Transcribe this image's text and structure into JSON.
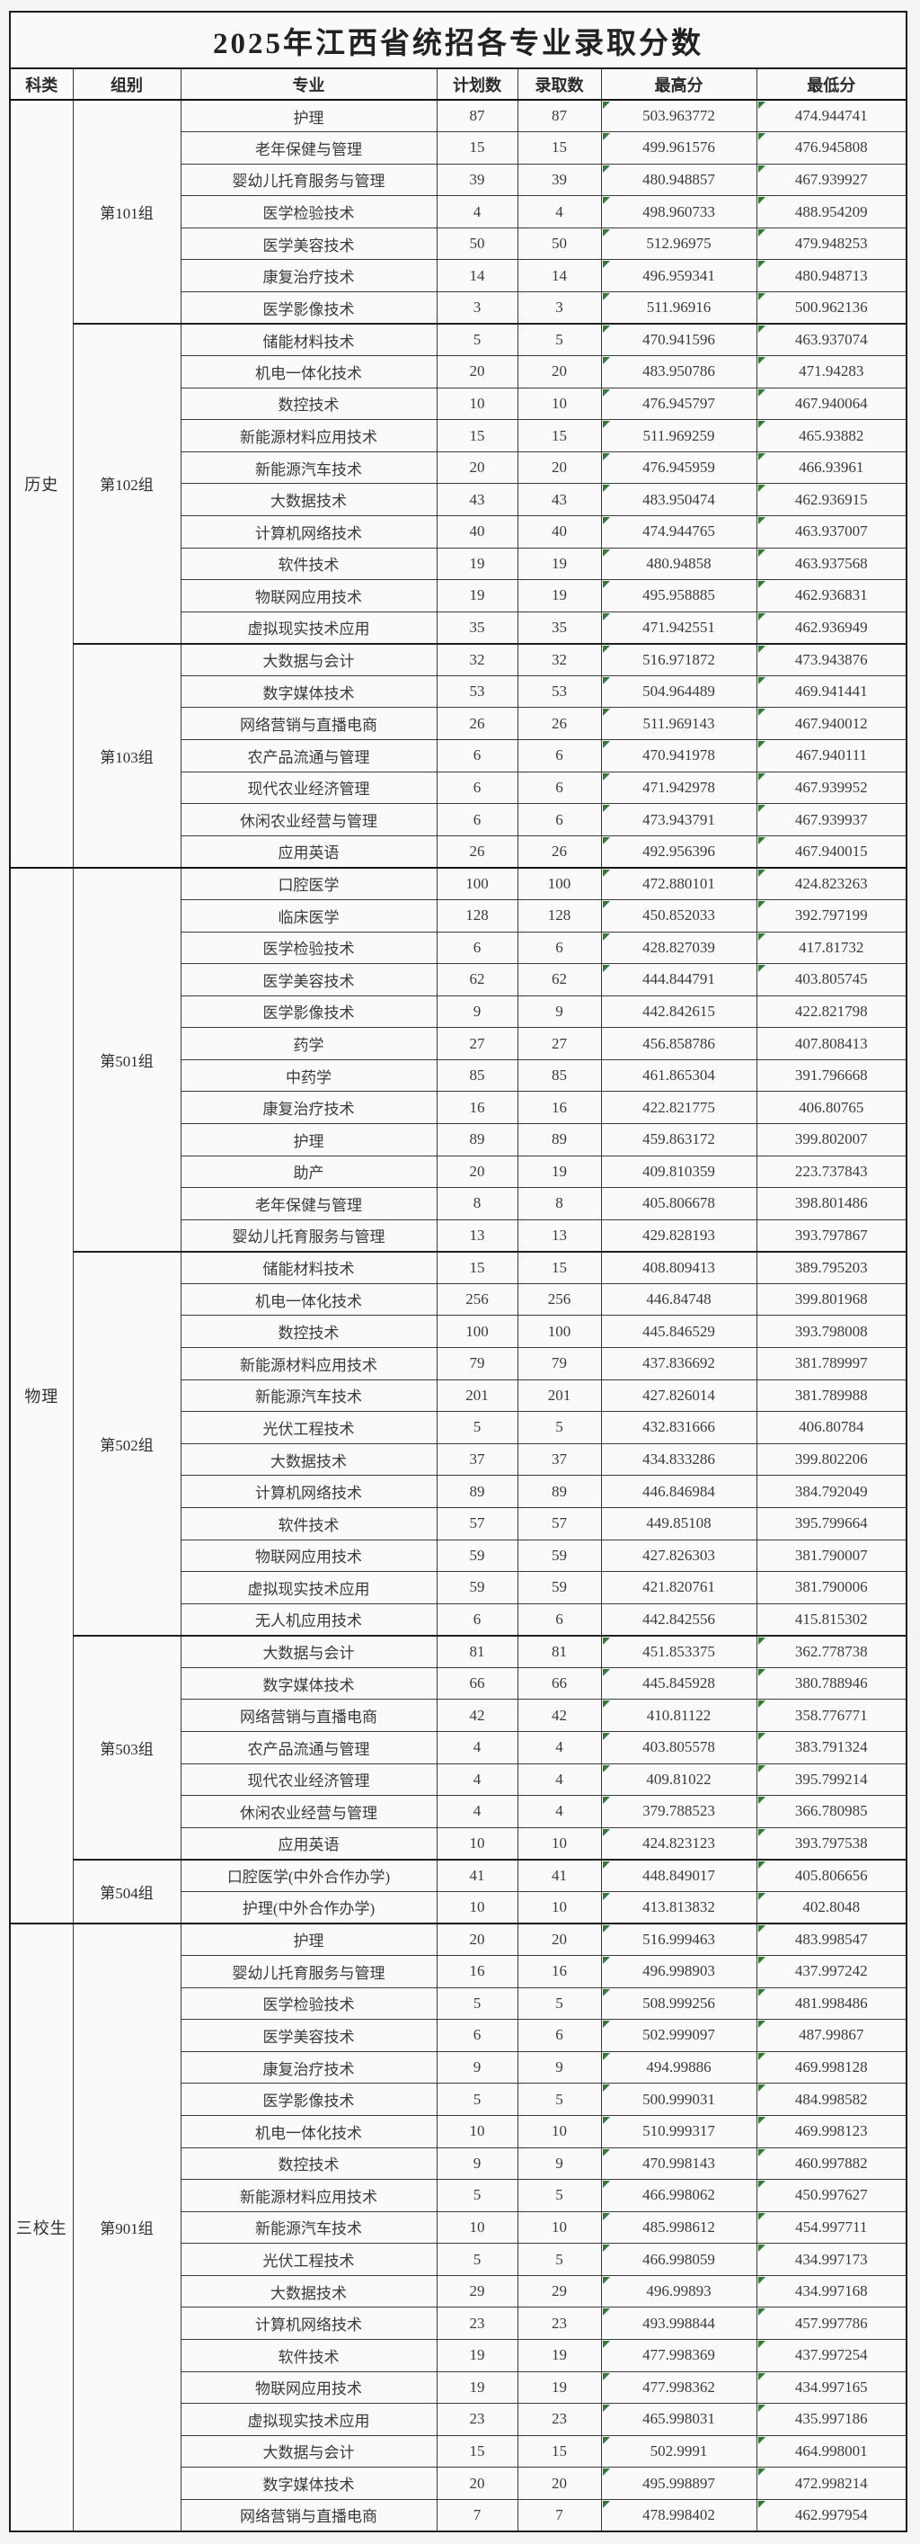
{
  "title": "2025年江西省统招各专业录取分数",
  "columns": [
    "科类",
    "组别",
    "专业",
    "计划数",
    "录取数",
    "最高分",
    "最低分"
  ],
  "colors": {
    "marker_green": "#2e7d32",
    "border_dark": "#1d1d1d",
    "text": "#333333",
    "cell_background": "#fafafa",
    "page_background": "#f4f4f4"
  },
  "row_format": [
    "major",
    "plan_count",
    "admitted_count",
    "max_score",
    "min_score",
    "has_corner_marker"
  ],
  "sections": [
    {
      "category": "历史",
      "groups": [
        {
          "name": "第101组",
          "rows": [
            [
              "护理",
              "87",
              "87",
              "503.963772",
              "474.944741",
              1
            ],
            [
              "老年保健与管理",
              "15",
              "15",
              "499.961576",
              "476.945808",
              1
            ],
            [
              "婴幼儿托育服务与管理",
              "39",
              "39",
              "480.948857",
              "467.939927",
              1
            ],
            [
              "医学检验技术",
              "4",
              "4",
              "498.960733",
              "488.954209",
              1
            ],
            [
              "医学美容技术",
              "50",
              "50",
              "512.96975",
              "479.948253",
              1
            ],
            [
              "康复治疗技术",
              "14",
              "14",
              "496.959341",
              "480.948713",
              1
            ],
            [
              "医学影像技术",
              "3",
              "3",
              "511.96916",
              "500.962136",
              1
            ]
          ]
        },
        {
          "name": "第102组",
          "rows": [
            [
              "储能材料技术",
              "5",
              "5",
              "470.941596",
              "463.937074",
              1
            ],
            [
              "机电一体化技术",
              "20",
              "20",
              "483.950786",
              "471.94283",
              1
            ],
            [
              "数控技术",
              "10",
              "10",
              "476.945797",
              "467.940064",
              1
            ],
            [
              "新能源材料应用技术",
              "15",
              "15",
              "511.969259",
              "465.93882",
              1
            ],
            [
              "新能源汽车技术",
              "20",
              "20",
              "476.945959",
              "466.93961",
              1
            ],
            [
              "大数据技术",
              "43",
              "43",
              "483.950474",
              "462.936915",
              1
            ],
            [
              "计算机网络技术",
              "40",
              "40",
              "474.944765",
              "463.937007",
              1
            ],
            [
              "软件技术",
              "19",
              "19",
              "480.94858",
              "463.937568",
              1
            ],
            [
              "物联网应用技术",
              "19",
              "19",
              "495.958885",
              "462.936831",
              1
            ],
            [
              "虚拟现实技术应用",
              "35",
              "35",
              "471.942551",
              "462.936949",
              1
            ]
          ]
        },
        {
          "name": "第103组",
          "rows": [
            [
              "大数据与会计",
              "32",
              "32",
              "516.971872",
              "473.943876",
              1
            ],
            [
              "数字媒体技术",
              "53",
              "53",
              "504.964489",
              "469.941441",
              1
            ],
            [
              "网络营销与直播电商",
              "26",
              "26",
              "511.969143",
              "467.940012",
              1
            ],
            [
              "农产品流通与管理",
              "6",
              "6",
              "470.941978",
              "467.940111",
              1
            ],
            [
              "现代农业经济管理",
              "6",
              "6",
              "471.942978",
              "467.939952",
              1
            ],
            [
              "休闲农业经营与管理",
              "6",
              "6",
              "473.943791",
              "467.939937",
              1
            ],
            [
              "应用英语",
              "26",
              "26",
              "492.956396",
              "467.940015",
              1
            ]
          ]
        }
      ]
    },
    {
      "category": "物理",
      "groups": [
        {
          "name": "第501组",
          "rows": [
            [
              "口腔医学",
              "100",
              "100",
              "472.880101",
              "424.823263",
              1
            ],
            [
              "临床医学",
              "128",
              "128",
              "450.852033",
              "392.797199",
              1
            ],
            [
              "医学检验技术",
              "6",
              "6",
              "428.827039",
              "417.81732",
              1
            ],
            [
              "医学美容技术",
              "62",
              "62",
              "444.844791",
              "403.805745",
              1
            ],
            [
              "医学影像技术",
              "9",
              "9",
              "442.842615",
              "422.821798",
              0
            ],
            [
              "药学",
              "27",
              "27",
              "456.858786",
              "407.808413",
              0
            ],
            [
              "中药学",
              "85",
              "85",
              "461.865304",
              "391.796668",
              0
            ],
            [
              "康复治疗技术",
              "16",
              "16",
              "422.821775",
              "406.80765",
              0
            ],
            [
              "护理",
              "89",
              "89",
              "459.863172",
              "399.802007",
              0
            ],
            [
              "助产",
              "20",
              "19",
              "409.810359",
              "223.737843",
              0
            ],
            [
              "老年保健与管理",
              "8",
              "8",
              "405.806678",
              "398.801486",
              0
            ],
            [
              "婴幼儿托育服务与管理",
              "13",
              "13",
              "429.828193",
              "393.797867",
              0
            ]
          ]
        },
        {
          "name": "第502组",
          "rows": [
            [
              "储能材料技术",
              "15",
              "15",
              "408.809413",
              "389.795203",
              0
            ],
            [
              "机电一体化技术",
              "256",
              "256",
              "446.84748",
              "399.801968",
              0
            ],
            [
              "数控技术",
              "100",
              "100",
              "445.846529",
              "393.798008",
              0
            ],
            [
              "新能源材料应用技术",
              "79",
              "79",
              "437.836692",
              "381.789997",
              0
            ],
            [
              "新能源汽车技术",
              "201",
              "201",
              "427.826014",
              "381.789988",
              0
            ],
            [
              "光伏工程技术",
              "5",
              "5",
              "432.831666",
              "406.80784",
              0
            ],
            [
              "大数据技术",
              "37",
              "37",
              "434.833286",
              "399.802206",
              0
            ],
            [
              "计算机网络技术",
              "89",
              "89",
              "446.846984",
              "384.792049",
              0
            ],
            [
              "软件技术",
              "57",
              "57",
              "449.85108",
              "395.799664",
              0
            ],
            [
              "物联网应用技术",
              "59",
              "59",
              "427.826303",
              "381.790007",
              0
            ],
            [
              "虚拟现实技术应用",
              "59",
              "59",
              "421.820761",
              "381.790006",
              0
            ],
            [
              "无人机应用技术",
              "6",
              "6",
              "442.842556",
              "415.815302",
              0
            ]
          ]
        },
        {
          "name": "第503组",
          "rows": [
            [
              "大数据与会计",
              "81",
              "81",
              "451.853375",
              "362.778738",
              1
            ],
            [
              "数字媒体技术",
              "66",
              "66",
              "445.845928",
              "380.788946",
              1
            ],
            [
              "网络营销与直播电商",
              "42",
              "42",
              "410.81122",
              "358.776771",
              1
            ],
            [
              "农产品流通与管理",
              "4",
              "4",
              "403.805578",
              "383.791324",
              1
            ],
            [
              "现代农业经济管理",
              "4",
              "4",
              "409.81022",
              "395.799214",
              1
            ],
            [
              "休闲农业经营与管理",
              "4",
              "4",
              "379.788523",
              "366.780985",
              1
            ],
            [
              "应用英语",
              "10",
              "10",
              "424.823123",
              "393.797538",
              1
            ]
          ]
        },
        {
          "name": "第504组",
          "rows": [
            [
              "口腔医学(中外合作办学)",
              "41",
              "41",
              "448.849017",
              "405.806656",
              1
            ],
            [
              "护理(中外合作办学)",
              "10",
              "10",
              "413.813832",
              "402.8048",
              1
            ]
          ]
        }
      ]
    },
    {
      "category": "三校生",
      "groups": [
        {
          "name": "第901组",
          "rows": [
            [
              "护理",
              "20",
              "20",
              "516.999463",
              "483.998547",
              1
            ],
            [
              "婴幼儿托育服务与管理",
              "16",
              "16",
              "496.998903",
              "437.997242",
              1
            ],
            [
              "医学检验技术",
              "5",
              "5",
              "508.999256",
              "481.998486",
              1
            ],
            [
              "医学美容技术",
              "6",
              "6",
              "502.999097",
              "487.99867",
              1
            ],
            [
              "康复治疗技术",
              "9",
              "9",
              "494.99886",
              "469.998128",
              1
            ],
            [
              "医学影像技术",
              "5",
              "5",
              "500.999031",
              "484.998582",
              1
            ],
            [
              "机电一体化技术",
              "10",
              "10",
              "510.999317",
              "469.998123",
              1
            ],
            [
              "数控技术",
              "9",
              "9",
              "470.998143",
              "460.997882",
              1
            ],
            [
              "新能源材料应用技术",
              "5",
              "5",
              "466.998062",
              "450.997627",
              1
            ],
            [
              "新能源汽车技术",
              "10",
              "10",
              "485.998612",
              "454.997711",
              1
            ],
            [
              "光伏工程技术",
              "5",
              "5",
              "466.998059",
              "434.997173",
              1
            ],
            [
              "大数据技术",
              "29",
              "29",
              "496.99893",
              "434.997168",
              1
            ],
            [
              "计算机网络技术",
              "23",
              "23",
              "493.998844",
              "457.997786",
              1
            ],
            [
              "软件技术",
              "19",
              "19",
              "477.998369",
              "437.997254",
              1
            ],
            [
              "物联网应用技术",
              "19",
              "19",
              "477.998362",
              "434.997165",
              1
            ],
            [
              "虚拟现实技术应用",
              "23",
              "23",
              "465.998031",
              "435.997186",
              1
            ],
            [
              "大数据与会计",
              "15",
              "15",
              "502.9991",
              "464.998001",
              1
            ],
            [
              "数字媒体技术",
              "20",
              "20",
              "495.998897",
              "472.998214",
              1
            ],
            [
              "网络营销与直播电商",
              "7",
              "7",
              "478.998402",
              "462.997954",
              1
            ]
          ]
        }
      ]
    }
  ]
}
